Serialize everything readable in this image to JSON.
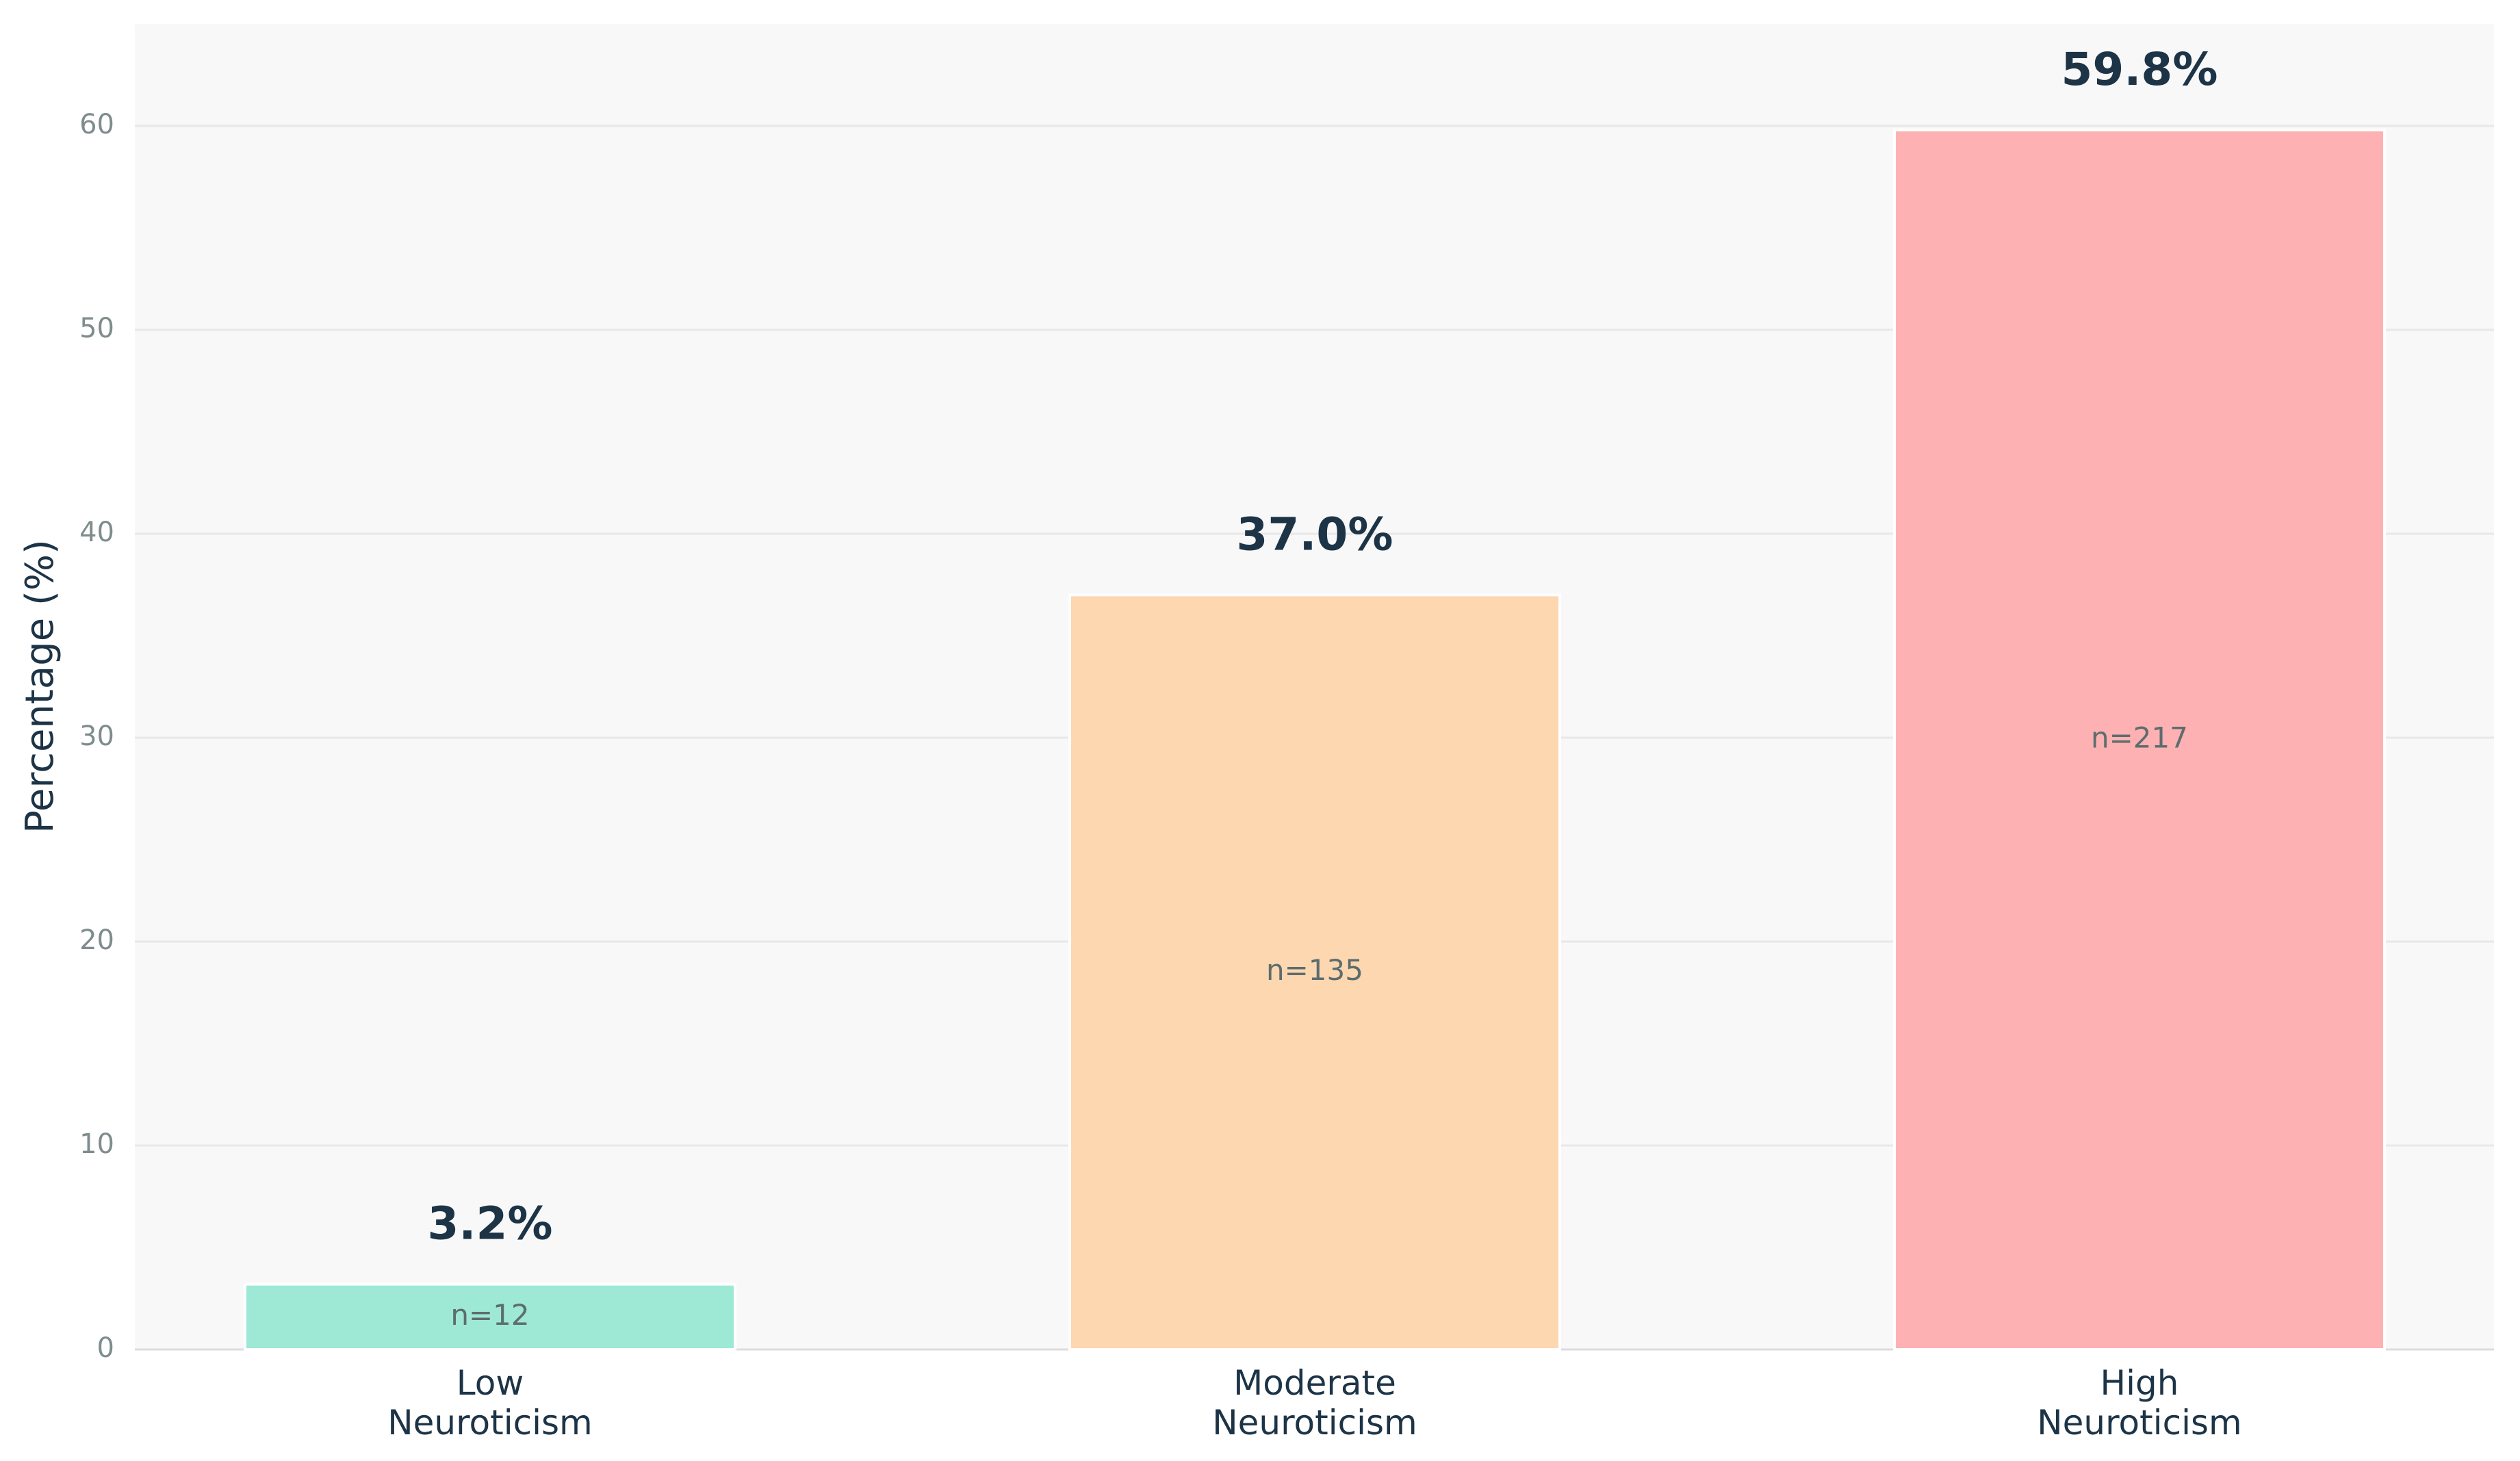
{
  "chart_data": {
    "type": "bar",
    "categories": [
      "Low\nNeuroticism",
      "Moderate\nNeuroticism",
      "High\nNeuroticism"
    ],
    "values": [
      3.2,
      37.0,
      59.8
    ],
    "value_labels": [
      "3.2%",
      "37.0%",
      "59.8%"
    ],
    "annotations": [
      "n=12",
      "n=135",
      "n=217"
    ],
    "colors": [
      "#9de9d5",
      "#fdd7b0",
      "#feb1b2"
    ],
    "y_label": "Percentage (%)",
    "ylim": [
      0,
      65
    ],
    "yticks": [
      0,
      10,
      20,
      30,
      40,
      50,
      60
    ],
    "grid": true
  }
}
